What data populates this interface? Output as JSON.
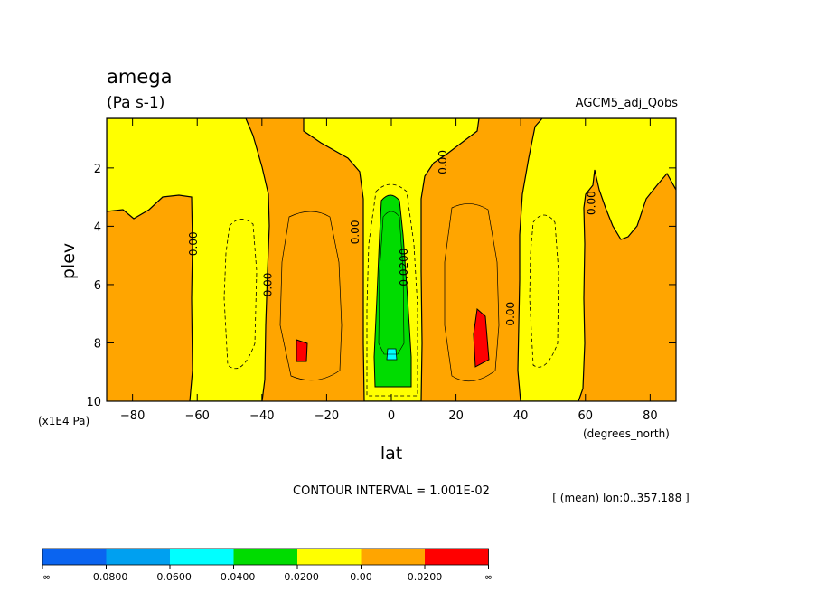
{
  "title": "amega",
  "units": "(Pa s-1)",
  "dataset": "AGCM5_adj_Qobs",
  "contour_interval": "CONTOUR INTERVAL = 1.001E-02",
  "mean_note": "[ (mean) lon:0..357.188 ]",
  "chart_data": {
    "type": "heatmap",
    "xlabel": "lat",
    "ylabel": "plev",
    "x_unit": "(degrees_north)",
    "y_unit": "(x1E4 Pa)",
    "xlim": [
      -88,
      88
    ],
    "ylim": [
      10,
      0.3
    ],
    "x_ticks": [
      -80,
      -60,
      -40,
      -20,
      0,
      20,
      40,
      60,
      80
    ],
    "y_ticks": [
      2,
      4,
      6,
      8,
      10
    ],
    "contour_labels": [
      {
        "text": "0.00",
        "lat": 17,
        "plev": 1.8
      },
      {
        "text": "0.00",
        "lat": 63,
        "plev": 3.2
      },
      {
        "text": "0.00",
        "lat": -10,
        "plev": 4.2
      },
      {
        "text": "0.00",
        "lat": -60,
        "plev": 4.6
      },
      {
        "text": "0.00",
        "lat": -37,
        "plev": 6.0
      },
      {
        "text": "0.00",
        "lat": 38,
        "plev": 7.0
      },
      {
        "text": "0.0200",
        "lat": 5,
        "plev": 5.4
      }
    ],
    "colorbar": {
      "colors": [
        "#0a64f0",
        "#00a0f0",
        "#00ffff",
        "#00dc00",
        "#ffff00",
        "#ffa500",
        "#ff0000"
      ],
      "labels": [
        "-∞",
        "-0.0800",
        "-0.0600",
        "-0.0400",
        "-0.0200",
        "0.00",
        "0.0200",
        "∞"
      ]
    }
  }
}
